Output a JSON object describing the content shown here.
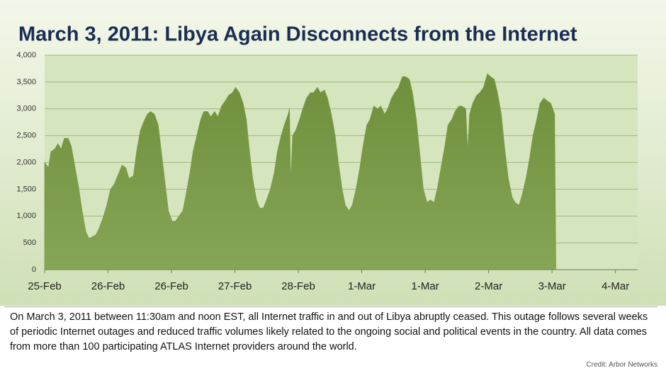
{
  "chart_data": {
    "type": "area",
    "title": "March 3, 2011: Libya Again Disconnects from the Internet",
    "caption": "On March 3, 2011 between 11:30am and noon EST, all Internet traffic in and out of Libya abruptly ceased. This outage follows several weeks of periodic Internet outages and reduced traffic volumes likely related to the ongoing social and political events in the country. All data comes from more than 100 participating ATLAS Internet providers around the world.",
    "credit": "Credit: Arbor Networks",
    "xlim": [
      0,
      9.35
    ],
    "ylim": [
      0,
      4000
    ],
    "grid": true,
    "xticks": [
      {
        "value": 0,
        "label": "25-Feb"
      },
      {
        "value": 1,
        "label": "26-Feb"
      },
      {
        "value": 2,
        "label": "26-Feb"
      },
      {
        "value": 3,
        "label": "27-Feb"
      },
      {
        "value": 4,
        "label": "28-Feb"
      },
      {
        "value": 5,
        "label": "1-Mar"
      },
      {
        "value": 6,
        "label": "1-Mar"
      },
      {
        "value": 7,
        "label": "2-Mar"
      },
      {
        "value": 8,
        "label": "3-Mar"
      },
      {
        "value": 9,
        "label": "4-Mar"
      }
    ],
    "yticks": [
      0,
      500,
      {
        "value": 1000,
        "label": "1,000"
      },
      {
        "value": 1500,
        "label": "1,500"
      },
      {
        "value": 2000,
        "label": "2,000"
      },
      {
        "value": 2500,
        "label": "2,500"
      },
      {
        "value": 3000,
        "label": "3,000"
      },
      {
        "value": 3500,
        "label": "3,500"
      },
      {
        "value": 4000,
        "label": "4,000"
      }
    ],
    "x": [
      0,
      0.06,
      0.1,
      0.16,
      0.21,
      0.26,
      0.31,
      0.37,
      0.42,
      0.48,
      0.54,
      0.59,
      0.65,
      0.7,
      0.76,
      0.81,
      0.87,
      0.93,
      0.98,
      1.04,
      1.1,
      1.17,
      1.22,
      1.28,
      1.33,
      1.4,
      1.45,
      1.51,
      1.56,
      1.62,
      1.67,
      1.73,
      1.79,
      1.84,
      1.9,
      1.95,
      2.01,
      2.06,
      2.12,
      2.18,
      2.23,
      2.29,
      2.34,
      2.4,
      2.46,
      2.51,
      2.57,
      2.62,
      2.68,
      2.73,
      2.79,
      2.85,
      2.9,
      2.96,
      3.01,
      3.07,
      3.13,
      3.18,
      3.23,
      3.28,
      3.34,
      3.39,
      3.45,
      3.5,
      3.56,
      3.62,
      3.67,
      3.73,
      3.78,
      3.84,
      3.86,
      3.88,
      3.91,
      3.96,
      4.02,
      4.07,
      4.13,
      4.19,
      4.24,
      4.3,
      4.35,
      4.41,
      4.46,
      4.52,
      4.58,
      4.63,
      4.69,
      4.74,
      4.8,
      4.85,
      4.91,
      4.97,
      5.02,
      5.08,
      5.13,
      5.19,
      5.25,
      5.3,
      5.36,
      5.41,
      5.47,
      5.52,
      5.58,
      5.64,
      5.69,
      5.75,
      5.8,
      5.86,
      5.92,
      5.97,
      6.03,
      6.08,
      6.14,
      6.19,
      6.25,
      6.31,
      6.36,
      6.42,
      6.47,
      6.53,
      6.58,
      6.64,
      6.67,
      6.7,
      6.75,
      6.81,
      6.86,
      6.92,
      6.98,
      7.03,
      7.09,
      7.14,
      7.2,
      7.25,
      7.31,
      7.37,
      7.42,
      7.48,
      7.53,
      7.59,
      7.65,
      7.7,
      7.76,
      7.81,
      7.87,
      7.92,
      7.98,
      8.04,
      8.06
    ],
    "series": [
      {
        "color": "#7a9a48",
        "values": [
          2000,
          1900,
          2200,
          2250,
          2350,
          2250,
          2450,
          2450,
          2300,
          1900,
          1500,
          1100,
          700,
          580,
          620,
          650,
          800,
          1000,
          1200,
          1500,
          1600,
          1800,
          1950,
          1900,
          1700,
          1750,
          2200,
          2600,
          2750,
          2900,
          2950,
          2900,
          2700,
          2200,
          1600,
          1100,
          900,
          900,
          1000,
          1100,
          1400,
          1800,
          2200,
          2500,
          2800,
          2950,
          2950,
          2850,
          2950,
          2850,
          3050,
          3150,
          3250,
          3300,
          3400,
          3300,
          3100,
          2800,
          2200,
          1700,
          1300,
          1150,
          1150,
          1300,
          1500,
          1800,
          2200,
          2500,
          2700,
          2900,
          3000,
          1600,
          2500,
          2600,
          2800,
          3000,
          3200,
          3300,
          3300,
          3400,
          3300,
          3350,
          3200,
          2900,
          2500,
          2000,
          1500,
          1200,
          1100,
          1200,
          1500,
          1900,
          2300,
          2700,
          2800,
          3050,
          3000,
          3050,
          2900,
          3000,
          3200,
          3300,
          3400,
          3600,
          3600,
          3550,
          3300,
          2800,
          2100,
          1500,
          1250,
          1300,
          1250,
          1500,
          1900,
          2300,
          2700,
          2800,
          2950,
          3050,
          3050,
          3000,
          2200,
          2900,
          3100,
          3250,
          3300,
          3400,
          3650,
          3600,
          3550,
          3300,
          2900,
          2300,
          1700,
          1350,
          1250,
          1200,
          1400,
          1700,
          2100,
          2500,
          2800,
          3100,
          3200,
          3150,
          3100,
          2900,
          0
        ]
      }
    ]
  }
}
